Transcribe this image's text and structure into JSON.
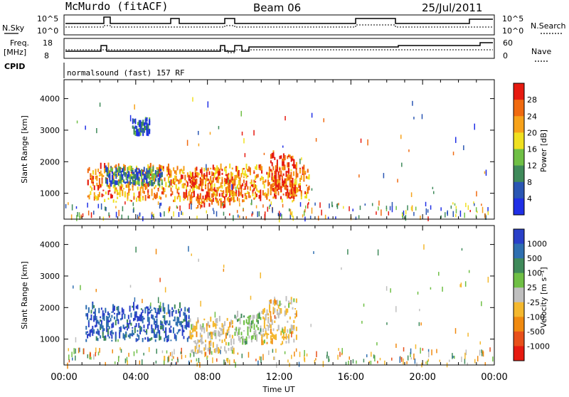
{
  "header": {
    "station": "McMurdo (fitACF)",
    "beam": "Beam 06",
    "date": "25/Jul/2011"
  },
  "panels": {
    "nsky": {
      "label": "N.Sky",
      "ticks": [
        "10^5",
        "10^0"
      ],
      "right_label": "N.Search",
      "right_ticks": [
        "10^5",
        "10^0"
      ]
    },
    "freq": {
      "label_line1": "Freq.",
      "label_line2": "[MHz]",
      "ticks": [
        "18",
        "8"
      ],
      "right_label": "Nave",
      "right_ticks": [
        "60",
        "0"
      ]
    },
    "cpid": {
      "label": "CPID",
      "value": "normalsound (fast) 157 RF"
    }
  },
  "colors": {
    "power": [
      "#1f2fe6",
      "#2a56b3",
      "#3f8a5a",
      "#6fbf45",
      "#f0e020",
      "#f7a21a",
      "#f06a10",
      "#e61a10"
    ],
    "velocity": [
      "#2a40c8",
      "#2f6fb0",
      "#3f8a5a",
      "#6fbf45",
      "#bfbfbf",
      "#f4b82e",
      "#f08a10",
      "#e8501a",
      "#e61a10"
    ]
  },
  "chart_data": [
    {
      "type": "heatmap",
      "title": "Power",
      "xlabel": "Time UT",
      "ylabel": "Slant Range [km]",
      "x_ticks": [
        "00:00",
        "04:00",
        "08:00",
        "12:00",
        "16:00",
        "20:00",
        "00:00"
      ],
      "y_ticks": [
        "4000",
        "3000",
        "2000",
        "1000"
      ],
      "xlim_hours": [
        0,
        24
      ],
      "ylim_km": [
        180,
        4600
      ],
      "colorbar": {
        "label": "Power [dB]",
        "ticks": [
          "28",
          "24",
          "20",
          "16",
          "12",
          "8",
          "4"
        ],
        "range": [
          0,
          30
        ]
      },
      "regions": [
        {
          "t0": 1.3,
          "t1": 13.7,
          "r0": 700,
          "r1": 1800,
          "value": 22
        },
        {
          "t0": 2.3,
          "t1": 5.5,
          "r0": 1200,
          "r1": 1700,
          "value": 8
        },
        {
          "t0": 3.8,
          "t1": 4.8,
          "r0": 2800,
          "r1": 3300,
          "value": 6
        },
        {
          "t0": 7.0,
          "t1": 9.5,
          "r0": 500,
          "r1": 1600,
          "value": 25
        },
        {
          "t0": 11.5,
          "t1": 13.0,
          "r0": 800,
          "r1": 2200,
          "value": 27
        }
      ]
    },
    {
      "type": "heatmap",
      "title": "Velocity",
      "xlabel": "Time UT",
      "ylabel": "Slant Range [km]",
      "x_ticks": [
        "00:00",
        "04:00",
        "08:00",
        "12:00",
        "16:00",
        "20:00",
        "00:00"
      ],
      "y_ticks": [
        "4000",
        "3000",
        "2000",
        "1000"
      ],
      "xlim_hours": [
        0,
        24
      ],
      "ylim_km": [
        180,
        4600
      ],
      "colorbar": {
        "label": "Velocity [m s⁻¹]",
        "ticks": [
          "1000",
          "500",
          "100",
          "25",
          "-25",
          "-100",
          "-500",
          "-1000"
        ],
        "range": [
          -1200,
          1200
        ]
      },
      "regions": [
        {
          "t0": 1.2,
          "t1": 7.0,
          "r0": 900,
          "r1": 2000,
          "value": 900
        },
        {
          "t0": 7.0,
          "t1": 9.5,
          "r0": 500,
          "r1": 1600,
          "value": -150
        },
        {
          "t0": 11.0,
          "t1": 13.0,
          "r0": 800,
          "r1": 2200,
          "value": -150
        },
        {
          "t0": 9.5,
          "t1": 11.0,
          "r0": 800,
          "r1": 1700,
          "value": 200
        }
      ]
    }
  ]
}
